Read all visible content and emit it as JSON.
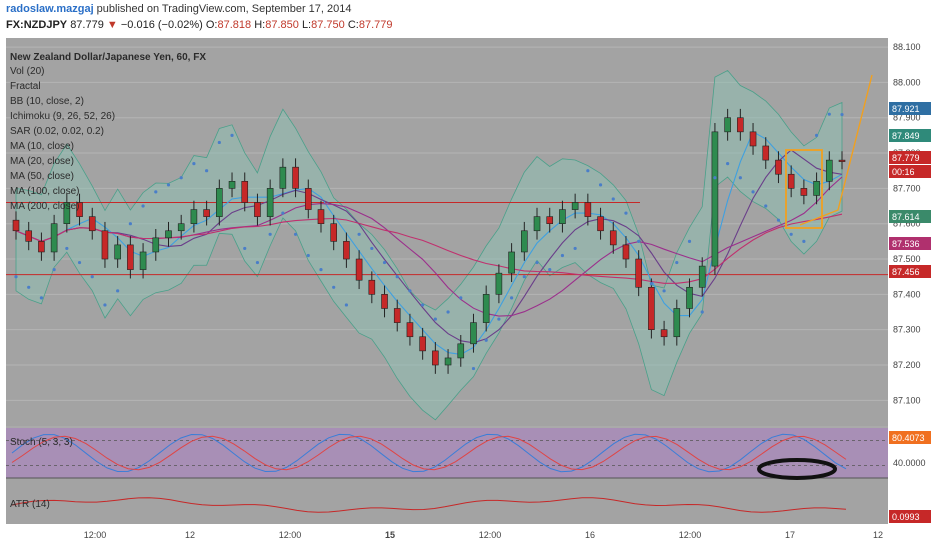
{
  "header": {
    "author": "radoslaw.mazgaj",
    "published_text": " published on TradingView.com, September 17, 2014",
    "symbol": "FX:NZDJPY",
    "last": "87.779",
    "change_arrow": "▼",
    "change": "−0.016 (−0.02%)",
    "open_label": "O:",
    "open": "87.818",
    "high_label": "H:",
    "high": "87.850",
    "low_label": "L:",
    "low": "87.750",
    "close_label": "C:",
    "close": "87.779"
  },
  "legend": {
    "title": "New Zealand Dollar/Japanese Yen, 60, FX",
    "items": [
      "Vol (20)",
      "Fractal",
      "BB (10, close, 2)",
      "Ichimoku (9, 26, 52, 26)",
      "SAR (0.02, 0.02, 0.2)",
      "MA (10, close)",
      "MA (20, close)",
      "MA (50, close)",
      "MA (100, close)",
      "MA (200, close)"
    ]
  },
  "price_axis": {
    "ticks": [
      "88.100",
      "88.000",
      "87.900",
      "87.800",
      "87.700",
      "87.600",
      "87.500",
      "87.400",
      "87.300",
      "87.200",
      "87.100"
    ],
    "badges": [
      {
        "text": "87.921",
        "color": "#2f6fa3"
      },
      {
        "text": "87.849",
        "color": "#2f8a7a"
      },
      {
        "text": "87.779",
        "color": "#c62828"
      },
      {
        "text": "00:16",
        "color": "#c62828"
      },
      {
        "text": "87.614",
        "color": "#3a8a6a"
      },
      {
        "text": "87.536",
        "color": "#b0306e"
      },
      {
        "text": "87.456",
        "color": "#c62828"
      }
    ]
  },
  "stoch": {
    "label": "Stoch (5, 3, 3)",
    "badge": "80.4073",
    "tick": "40.0000"
  },
  "atr": {
    "label": "ATR (14)",
    "badge": "0.0993"
  },
  "time_axis": [
    "12:00",
    "12",
    "12:00",
    "15",
    "12:00",
    "16",
    "12:00",
    "17",
    "12"
  ],
  "colors": {
    "plot_bg": "#a3a3a3",
    "stoch_bg": "#a88fb6",
    "up": "#2e8b4f",
    "down": "#c62828",
    "bb_fill": "#8fc0b2",
    "sar": "#4a7ec8"
  },
  "chart_data": {
    "type": "candlestick",
    "title": "New Zealand Dollar/Japanese Yen, 60, FX",
    "ylim": [
      87.05,
      88.12
    ],
    "last_price": 87.779,
    "ohlc_close_series": [
      87.58,
      87.55,
      87.52,
      87.6,
      87.66,
      87.62,
      87.58,
      87.5,
      87.54,
      87.47,
      87.52,
      87.56,
      87.58,
      87.6,
      87.64,
      87.62,
      87.7,
      87.72,
      87.66,
      87.62,
      87.7,
      87.76,
      87.7,
      87.64,
      87.6,
      87.55,
      87.5,
      87.44,
      87.4,
      87.36,
      87.32,
      87.28,
      87.24,
      87.2,
      87.22,
      87.26,
      87.32,
      87.4,
      87.46,
      87.52,
      87.58,
      87.62,
      87.6,
      87.64,
      87.66,
      87.62,
      87.58,
      87.54,
      87.5,
      87.42,
      87.3,
      87.28,
      87.36,
      87.42,
      87.48,
      87.86,
      87.9,
      87.86,
      87.82,
      87.78,
      87.74,
      87.7,
      87.68,
      87.72,
      87.78,
      87.779
    ]
  }
}
